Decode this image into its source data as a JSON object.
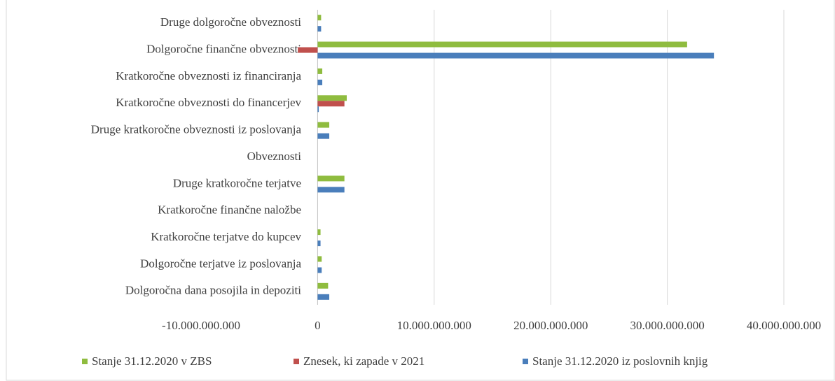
{
  "chart_data": {
    "type": "bar",
    "orientation": "horizontal",
    "categories": [
      "Druge dolgoročne obveznosti",
      "Dolgoročne finančne obveznosti",
      "Kratkoročne obveznosti iz financiranja",
      "Kratkoročne obveznosti do financerjev",
      "Druge kratkoročne obveznosti iz poslovanja",
      "Obveznosti",
      "Druge kratkoročne terjatve",
      "Kratkoročne finančne naložbe",
      "Kratkoročne terjatve do kupcev",
      "Dolgoročne terjatve iz poslovanja",
      "Dolgoročna dana posojila in depoziti"
    ],
    "series": [
      {
        "name": "Stanje 31.12.2020 v ZBS",
        "color": "#8fbc3f",
        "values": [
          300000000,
          31700000000,
          400000000,
          2500000000,
          1000000000,
          0,
          2300000000,
          0,
          250000000,
          350000000,
          900000000
        ]
      },
      {
        "name": "Znesek, ki zapade v 2021",
        "color": "#c0504d",
        "values": [
          0,
          -1700000000,
          0,
          2300000000,
          0,
          0,
          0,
          0,
          0,
          0,
          0
        ]
      },
      {
        "name": "Stanje 31.12.2020 iz poslovnih knjig",
        "color": "#4a7ebb",
        "values": [
          300000000,
          34000000000,
          400000000,
          100000000,
          1000000000,
          0,
          2300000000,
          0,
          250000000,
          350000000,
          1000000000
        ]
      }
    ],
    "xlim": [
      -10000000000,
      40000000000
    ],
    "xticks": [
      {
        "value": -10000000000,
        "label": "-10.000.000.000"
      },
      0,
      {
        "value": 10000000000,
        "label": "10.000.000.000"
      },
      {
        "value": 20000000000,
        "label": "20.000.000.000"
      },
      {
        "value": 30000000000,
        "label": "30.000.000.000"
      },
      {
        "value": 40000000000,
        "label": "40.000.000.000"
      }
    ],
    "grid": true,
    "legend": "bottom"
  }
}
